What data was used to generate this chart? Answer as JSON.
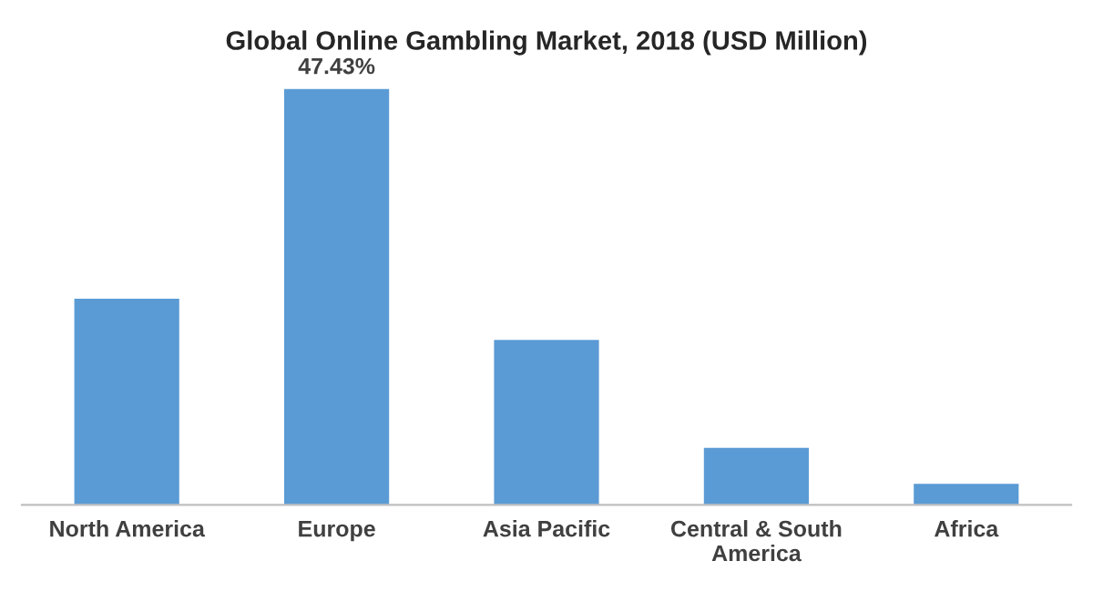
{
  "chart_data": {
    "type": "bar",
    "title": "Global Online Gambling Market, 2018 (USD Million)",
    "categories": [
      "North America",
      "Europe",
      "Asia Pacific",
      "Central & South\nAmerica",
      "Africa"
    ],
    "values": [
      23.5,
      47.43,
      18.8,
      6.5,
      2.4
    ],
    "value_labels": [
      null,
      "47.43%",
      null,
      null,
      null
    ],
    "color": "#5b9bd5",
    "grid": false,
    "legend": false
  }
}
